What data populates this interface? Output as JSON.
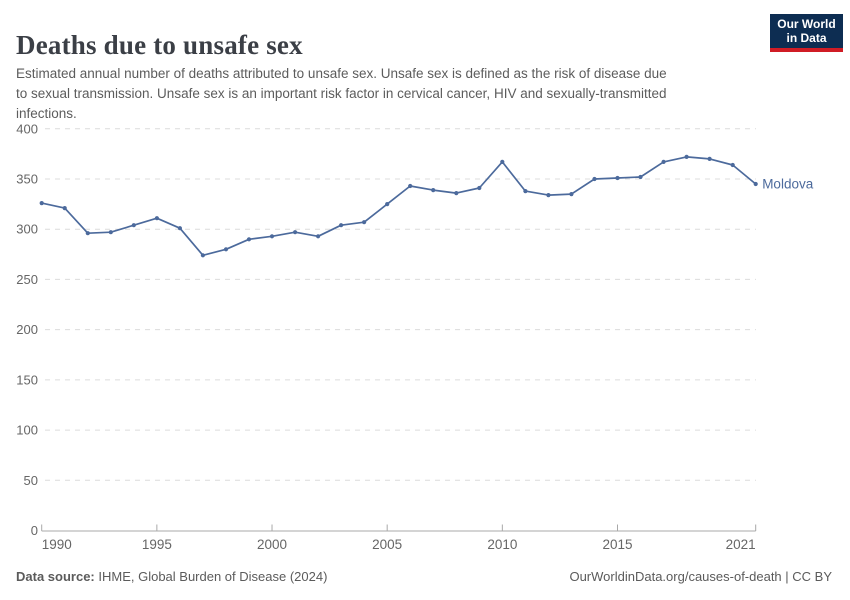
{
  "header": {
    "title": "Deaths due to unsafe sex",
    "subtitle_lines": [
      "Estimated annual number of deaths attributed to unsafe sex. Unsafe sex is defined as the risk of disease due",
      "to sexual transmission. Unsafe sex is an important risk factor in cervical cancer, HIV and sexually-transmitted",
      "infections."
    ],
    "logo": {
      "line1": "Our World",
      "line2": "in Data"
    }
  },
  "footer": {
    "datasource_label": "Data source:",
    "datasource_value": " IHME, Global Burden of Disease (2024)",
    "attribution": "OurWorldinData.org/causes-of-death | CC BY"
  },
  "colors": {
    "line": "#4c6a9c",
    "grid": "#dcdcdc",
    "axis": "#a8a8a8",
    "tick_text": "#666666",
    "logo_bg": "#0d2d52",
    "logo_red": "#d01c25"
  },
  "chart_data": {
    "type": "line",
    "title": "Deaths due to unsafe sex",
    "xlabel": "",
    "ylabel": "",
    "ylim": [
      0,
      400
    ],
    "yticks": [
      0,
      50,
      100,
      150,
      200,
      250,
      300,
      350,
      400
    ],
    "xticks": [
      1990,
      1995,
      2000,
      2005,
      2010,
      2015,
      2021
    ],
    "grid": "horizontal-dashed",
    "legend_position": "end-of-line-label",
    "x": [
      1990,
      1991,
      1992,
      1993,
      1994,
      1995,
      1996,
      1997,
      1998,
      1999,
      2000,
      2001,
      2002,
      2003,
      2004,
      2005,
      2006,
      2007,
      2008,
      2009,
      2010,
      2011,
      2012,
      2013,
      2014,
      2015,
      2016,
      2017,
      2018,
      2019,
      2020,
      2021
    ],
    "series": [
      {
        "name": "Moldova",
        "values": [
          326,
          321,
          296,
          297,
          304,
          311,
          301,
          274,
          280,
          290,
          293,
          297,
          293,
          304,
          307,
          325,
          343,
          339,
          336,
          341,
          367,
          338,
          334,
          335,
          350,
          351,
          352,
          367,
          372,
          370,
          364,
          345
        ]
      }
    ]
  }
}
